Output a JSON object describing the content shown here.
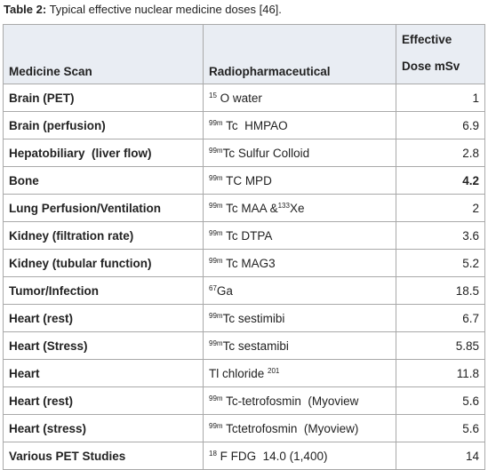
{
  "title": {
    "label": "Table 2:",
    "text": "Typical effective nuclear medicine doses [46]."
  },
  "table": {
    "header": {
      "scan": "Medicine Scan",
      "pharma": "Radiopharmaceutical",
      "dose": [
        "Effective",
        "Dose mSv"
      ]
    },
    "rows": [
      {
        "scan": "Brain (PET)",
        "pharma": [
          {
            "t": "15",
            "sup": true
          },
          {
            "t": " O water",
            "sup": false
          }
        ],
        "dose": 1
      },
      {
        "scan": "Brain (perfusion)",
        "pharma": [
          {
            "t": "99m",
            "sup": true
          },
          {
            "t": " Tc  HMPAO",
            "sup": false
          }
        ],
        "dose": 6.9
      },
      {
        "scan": "Hepatobiliary  (liver flow)",
        "pharma": [
          {
            "t": "99m",
            "sup": true
          },
          {
            "t": "Tc Sulfur Colloid",
            "sup": false
          }
        ],
        "dose": 2.8
      },
      {
        "scan": "Bone",
        "pharma": [
          {
            "t": "99m",
            "sup": true
          },
          {
            "t": " TC MPD",
            "sup": false
          }
        ],
        "dose": 4.2,
        "dose_bold": true
      },
      {
        "scan": "Lung Perfusion/Ventilation",
        "pharma": [
          {
            "t": "99m",
            "sup": true
          },
          {
            "t": " Tc MAA &",
            "sup": false
          },
          {
            "t": "133",
            "sup": true
          },
          {
            "t": "Xe",
            "sup": false
          }
        ],
        "dose": 2
      },
      {
        "scan": "Kidney (filtration rate)",
        "pharma": [
          {
            "t": "99m",
            "sup": true
          },
          {
            "t": " Tc DTPA",
            "sup": false
          }
        ],
        "dose": 3.6
      },
      {
        "scan": "Kidney (tubular function)",
        "pharma": [
          {
            "t": "99m",
            "sup": true
          },
          {
            "t": " Tc MAG3",
            "sup": false
          }
        ],
        "dose": 5.2
      },
      {
        "scan": "Tumor/Infection",
        "pharma": [
          {
            "t": "67",
            "sup": true
          },
          {
            "t": "Ga",
            "sup": false
          }
        ],
        "dose": 18.5
      },
      {
        "scan": "Heart (rest)",
        "pharma": [
          {
            "t": "99m",
            "sup": true
          },
          {
            "t": "Tc sestimibi",
            "sup": false
          }
        ],
        "dose": 6.7
      },
      {
        "scan": "Heart (Stress)",
        "pharma": [
          {
            "t": "99m",
            "sup": true
          },
          {
            "t": "Tc sestamibi",
            "sup": false
          }
        ],
        "dose": 5.85
      },
      {
        "scan": "Heart",
        "pharma": [
          {
            "t": "Tl chloride ",
            "sup": false
          },
          {
            "t": "201",
            "sup": true
          }
        ],
        "dose": 11.8
      },
      {
        "scan": "Heart (rest)",
        "pharma": [
          {
            "t": "99m",
            "sup": true
          },
          {
            "t": " Tc-tetrofosmin  (Myoview",
            "sup": false
          }
        ],
        "dose": 5.6
      },
      {
        "scan": "Heart (stress)",
        "pharma": [
          {
            "t": "99m",
            "sup": true
          },
          {
            "t": " Tctetrofosmin  (Myoview)",
            "sup": false
          }
        ],
        "dose": 5.6
      },
      {
        "scan": "Various PET Studies",
        "pharma": [
          {
            "t": "18",
            "sup": true
          },
          {
            "t": " F FDG  14.0 (1,400)",
            "sup": false
          }
        ],
        "dose": 14
      }
    ]
  }
}
